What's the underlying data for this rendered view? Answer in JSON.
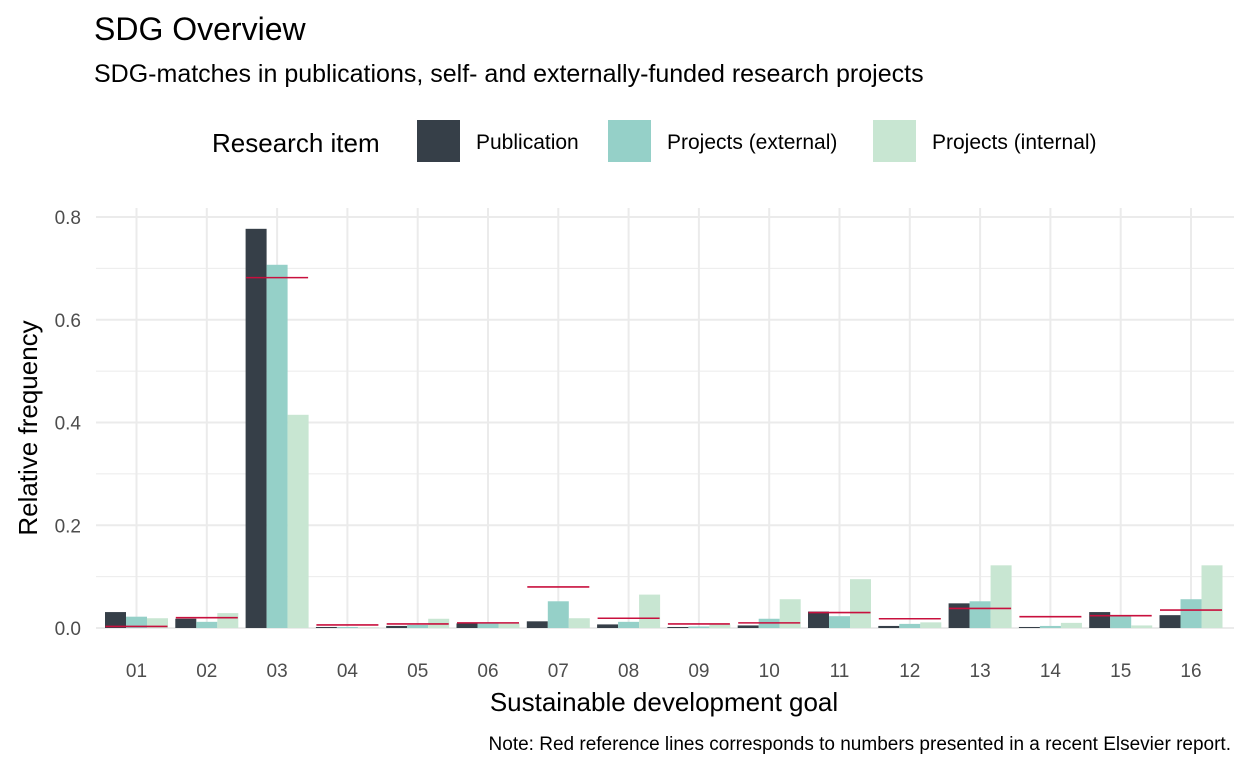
{
  "chart_data": {
    "type": "bar",
    "title": "SDG Overview",
    "subtitle": "SDG-matches in publications, self- and externally-funded research projects",
    "xlabel": "Sustainable development goal",
    "ylabel": "Relative frequency",
    "caption": "Note: Red reference lines corresponds to numbers presented in a recent Elsevier report.",
    "legend_title": "Research item",
    "legend_position": "top",
    "grid": true,
    "ylim": [
      0,
      0.8
    ],
    "y_ticks": [
      0.0,
      0.2,
      0.4,
      0.6,
      0.8
    ],
    "y_tick_labels": [
      "0.0",
      "0.2",
      "0.4",
      "0.6",
      "0.8"
    ],
    "categories": [
      "01",
      "02",
      "03",
      "04",
      "05",
      "06",
      "07",
      "08",
      "09",
      "10",
      "11",
      "12",
      "13",
      "14",
      "15",
      "16"
    ],
    "series": [
      {
        "name": "Publication",
        "color": "#363f48",
        "values": [
          0.031,
          0.018,
          0.777,
          0.002,
          0.004,
          0.009,
          0.013,
          0.007,
          0.002,
          0.005,
          0.032,
          0.004,
          0.048,
          0.002,
          0.031,
          0.025
        ]
      },
      {
        "name": "Projects (external)",
        "color": "#95d0c8",
        "values": [
          0.022,
          0.012,
          0.707,
          0.002,
          0.006,
          0.009,
          0.052,
          0.012,
          0.003,
          0.018,
          0.023,
          0.008,
          0.052,
          0.004,
          0.023,
          0.056
        ]
      },
      {
        "name": "Projects (internal)",
        "color": "#c8e6d2",
        "values": [
          0.019,
          0.029,
          0.415,
          0.001,
          0.018,
          0.009,
          0.019,
          0.065,
          0.007,
          0.056,
          0.095,
          0.011,
          0.122,
          0.01,
          0.005,
          0.122
        ]
      }
    ],
    "reference_lines": {
      "color": "#c8103e",
      "values": [
        0.003,
        0.02,
        0.682,
        0.006,
        0.008,
        0.01,
        0.08,
        0.019,
        0.008,
        0.01,
        0.03,
        0.018,
        0.038,
        0.022,
        0.024,
        0.035
      ]
    }
  }
}
